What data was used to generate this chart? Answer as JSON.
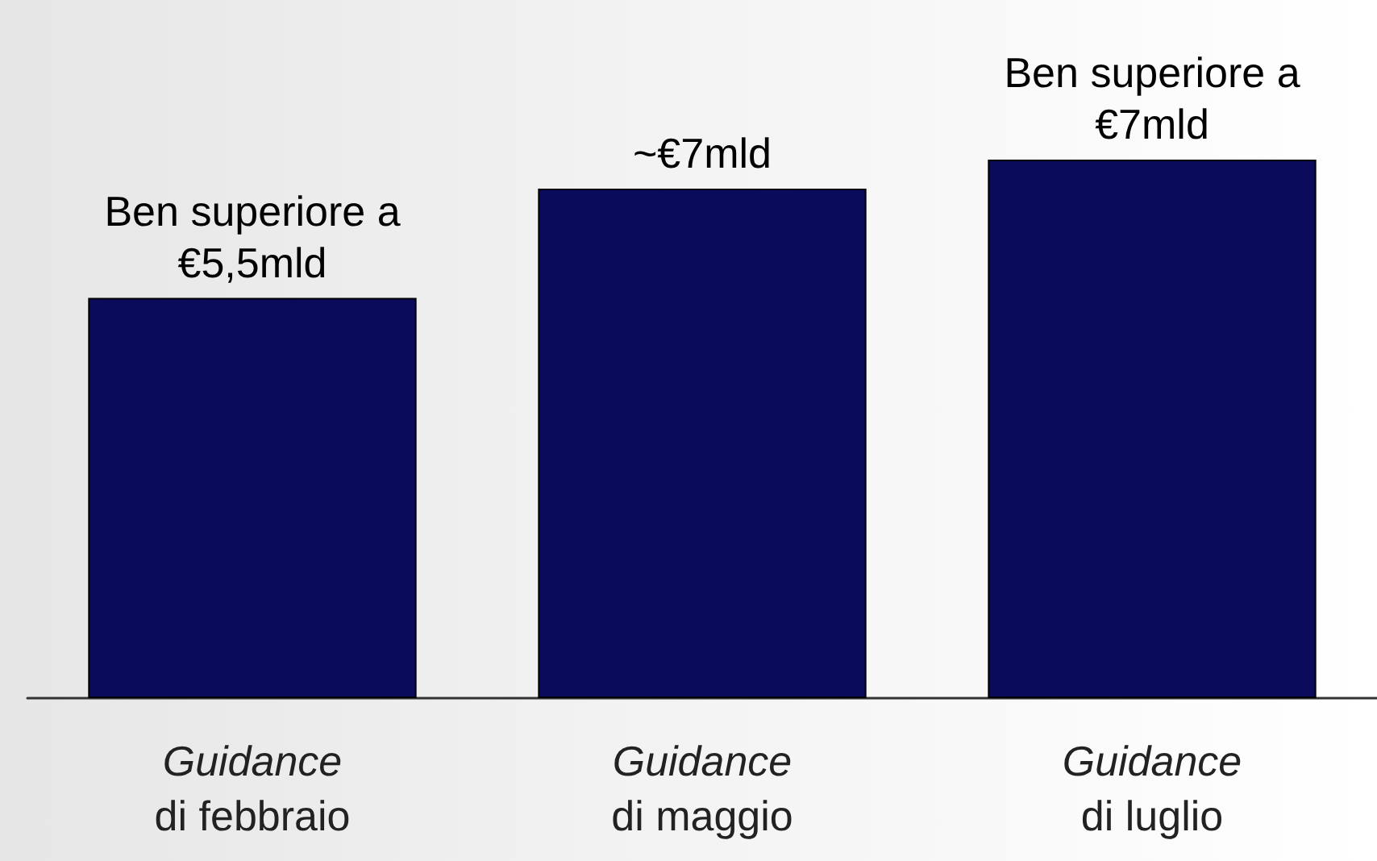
{
  "chart_data": {
    "type": "bar",
    "categories": [
      "Guidance\ndi febbraio",
      "Guidance\ndi maggio",
      "Guidance\ndi luglio"
    ],
    "values": [
      5.5,
      7,
      7.4
    ],
    "value_labels": [
      "Ben superiore a\n€5,5mld",
      "~€7mld",
      "Ben superiore a\n€7mld"
    ],
    "color": "#0b0b5c",
    "tick_labels": "x"
  }
}
